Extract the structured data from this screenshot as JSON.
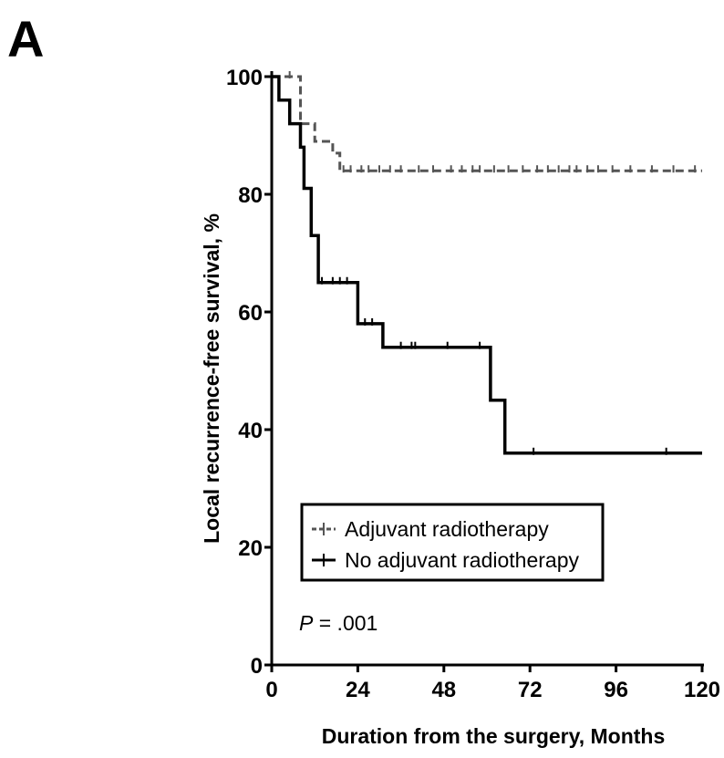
{
  "panel_label": "A",
  "chart_data": {
    "type": "line",
    "title": "",
    "xlabel": "Duration from the surgery, Months",
    "ylabel": "Local recurrence-free survival, %",
    "xlim": [
      0,
      120
    ],
    "ylim": [
      0,
      100
    ],
    "xticks": [
      0,
      24,
      48,
      72,
      96,
      120
    ],
    "yticks": [
      0,
      20,
      40,
      60,
      80,
      100
    ],
    "legend_position": "bottom-left",
    "annotation": {
      "italic": "P",
      "rest": " = .001"
    },
    "series": [
      {
        "name": "Adjuvant radiotherapy",
        "style": "dashed",
        "color": "#555555",
        "steps": [
          [
            0,
            100
          ],
          [
            8,
            100
          ],
          [
            8,
            92
          ],
          [
            12,
            92
          ],
          [
            12,
            89
          ],
          [
            17,
            89
          ],
          [
            17,
            87
          ],
          [
            19,
            87
          ],
          [
            19,
            84
          ],
          [
            120,
            84
          ]
        ],
        "censored": [
          5,
          20,
          22,
          25,
          27,
          30,
          33,
          36,
          41,
          45,
          50,
          53,
          56,
          58,
          62,
          66,
          70,
          74,
          77,
          80,
          83,
          85,
          88,
          91,
          95,
          100,
          106,
          112,
          118
        ]
      },
      {
        "name": "No adjuvant radiotherapy",
        "style": "solid",
        "color": "#000000",
        "steps": [
          [
            0,
            100
          ],
          [
            2,
            100
          ],
          [
            2,
            96
          ],
          [
            5,
            96
          ],
          [
            5,
            92
          ],
          [
            8,
            92
          ],
          [
            8,
            88
          ],
          [
            9,
            88
          ],
          [
            9,
            81
          ],
          [
            11,
            81
          ],
          [
            11,
            73
          ],
          [
            13,
            73
          ],
          [
            13,
            65
          ],
          [
            24,
            65
          ],
          [
            24,
            58
          ],
          [
            31,
            58
          ],
          [
            31,
            54
          ],
          [
            61,
            54
          ],
          [
            61,
            45
          ],
          [
            65,
            45
          ],
          [
            65,
            36
          ],
          [
            120,
            36
          ]
        ],
        "censored": [
          14,
          17,
          19,
          21,
          26,
          28,
          36,
          39,
          40,
          49,
          58,
          73,
          110
        ]
      }
    ]
  }
}
